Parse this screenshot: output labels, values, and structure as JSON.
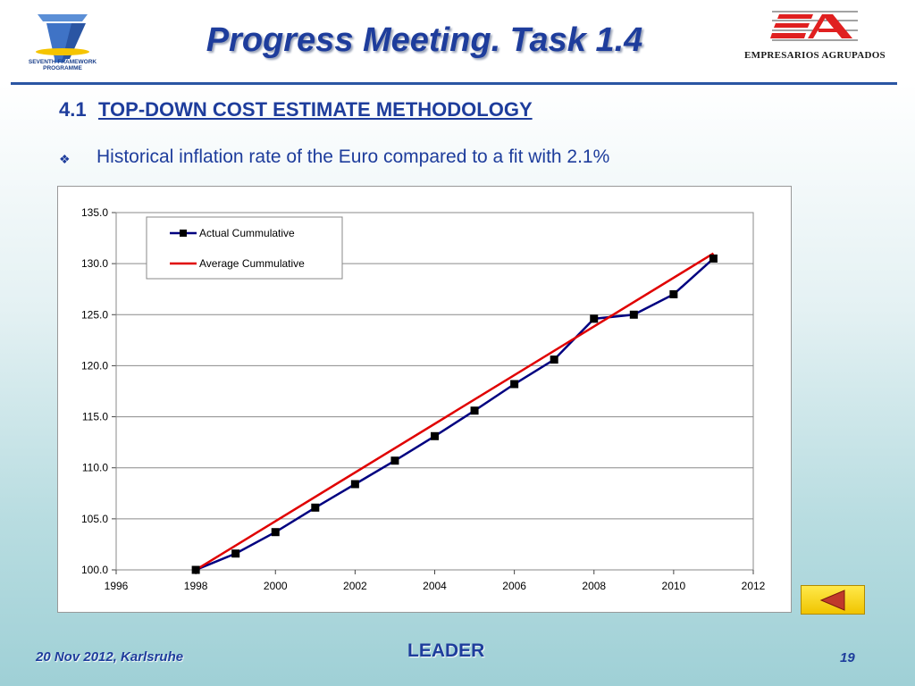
{
  "header": {
    "title": "Progress Meeting. Task 1.4",
    "left_logo_text": "SEVENTH FRAMEWORK PROGRAMME",
    "right_logo_text": "EMPRESARIOS AGRUPADOS"
  },
  "section": {
    "number": "4.1",
    "title": "TOP-DOWN COST ESTIMATE METHODOLOGY"
  },
  "bullet": {
    "icon": "diamond-bullet-icon",
    "text": "Historical inflation rate of the Euro compared to a fit with 2.1%"
  },
  "chart_data": {
    "type": "line",
    "title": "",
    "xlabel": "",
    "ylabel": "",
    "xlim": [
      1996,
      2012
    ],
    "ylim": [
      100.0,
      135.0
    ],
    "x_ticks": [
      "1996",
      "1998",
      "2000",
      "2002",
      "2004",
      "2006",
      "2008",
      "2010",
      "2012"
    ],
    "y_ticks": [
      "100.0",
      "105.0",
      "110.0",
      "115.0",
      "120.0",
      "125.0",
      "130.0",
      "135.0"
    ],
    "grid": "horizontal",
    "legend_position": "top-left",
    "series": [
      {
        "name": "Actual Cummulative",
        "color": "#000080",
        "marker": "square",
        "x": [
          1998,
          1999,
          2000,
          2001,
          2002,
          2003,
          2004,
          2005,
          2006,
          2007,
          2008,
          2009,
          2010,
          2011
        ],
        "y": [
          100.0,
          101.6,
          103.7,
          106.1,
          108.4,
          110.7,
          113.1,
          115.6,
          118.2,
          120.6,
          124.6,
          125.0,
          127.0,
          130.5
        ]
      },
      {
        "name": "Average Cummulative",
        "color": "#e00000",
        "marker": "none",
        "x": [
          1998,
          2011
        ],
        "y": [
          100.0,
          131.0
        ]
      }
    ]
  },
  "footer": {
    "date": "20 Nov 2012, Karlsruhe",
    "project": "LEADER",
    "page": "19"
  },
  "colors": {
    "title_blue": "#1e3d9c",
    "ea_red": "#e02020",
    "button_yellow": "#f5d000"
  }
}
